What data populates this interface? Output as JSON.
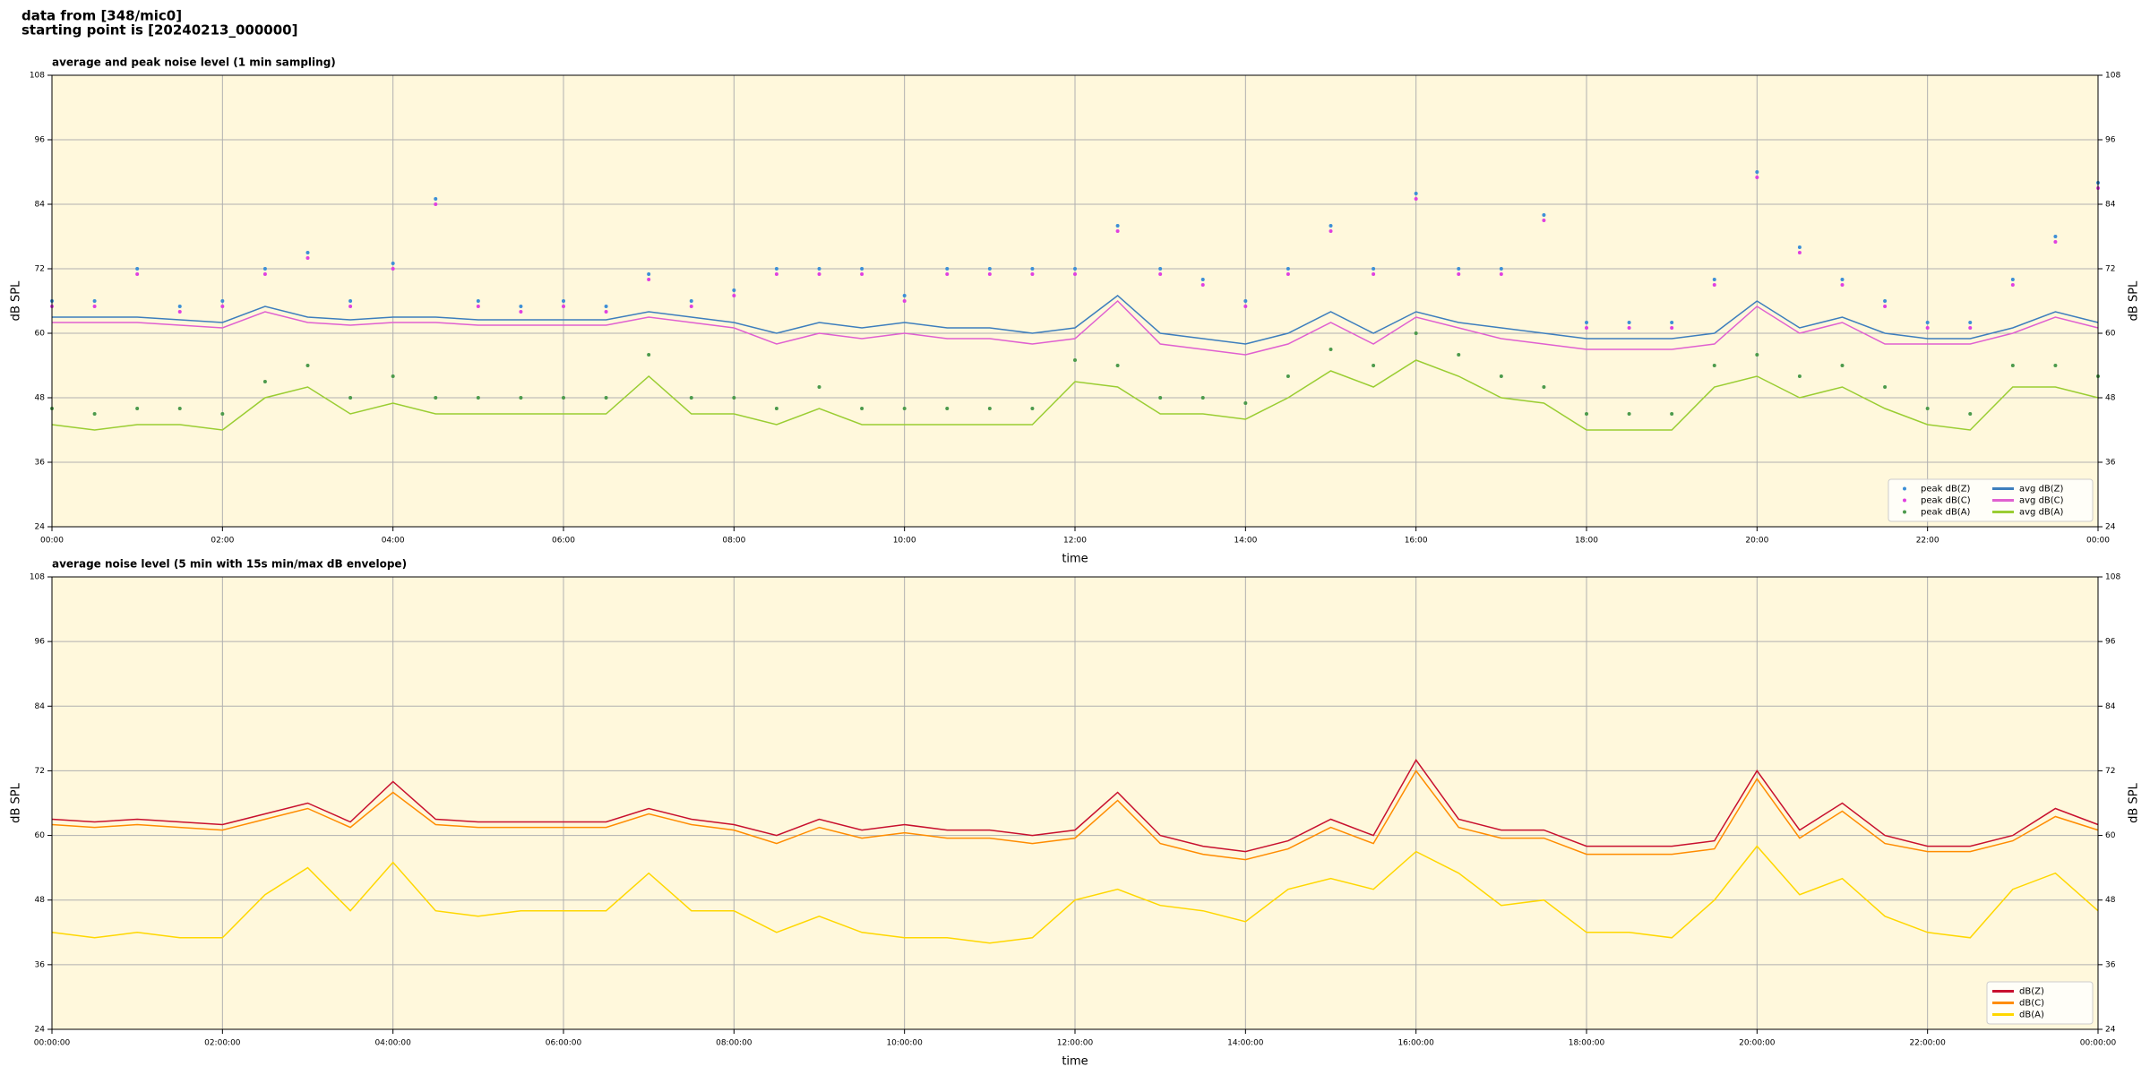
{
  "title": [
    "data from [348/mic0]",
    "starting point is [20240213_000000]"
  ],
  "chart_data": [
    {
      "type": "line",
      "title": "average and peak noise level (1 min sampling)",
      "xlabel": "time",
      "ylabel": "dB SPL",
      "y2label": "dB SPL",
      "x": [
        0,
        0.5,
        1,
        1.5,
        2,
        2.5,
        3,
        3.5,
        4,
        4.5,
        5,
        5.5,
        6,
        6.5,
        7,
        7.5,
        8,
        8.5,
        9,
        9.5,
        10,
        10.5,
        11,
        11.5,
        12,
        12.5,
        13,
        13.5,
        14,
        14.5,
        15,
        15.5,
        16,
        16.5,
        17,
        17.5,
        18,
        18.5,
        19,
        19.5,
        20,
        20.5,
        21,
        21.5,
        22,
        22.5,
        23,
        23.5,
        24
      ],
      "xlim": [
        0,
        24
      ],
      "xticks": [
        {
          "value": 0,
          "label": "00:00"
        },
        {
          "value": 2,
          "label": "02:00"
        },
        {
          "value": 4,
          "label": "04:00"
        },
        {
          "value": 6,
          "label": "06:00"
        },
        {
          "value": 8,
          "label": "08:00"
        },
        {
          "value": 10,
          "label": "10:00"
        },
        {
          "value": 12,
          "label": "12:00"
        },
        {
          "value": 14,
          "label": "14:00"
        },
        {
          "value": 16,
          "label": "16:00"
        },
        {
          "value": 18,
          "label": "18:00"
        },
        {
          "value": 20,
          "label": "20:00"
        },
        {
          "value": 22,
          "label": "22:00"
        },
        {
          "value": 24,
          "label": "00:00"
        }
      ],
      "ylim": [
        24,
        108
      ],
      "yticks": [
        24,
        36,
        48,
        60,
        72,
        84,
        96,
        108
      ],
      "y2lim": [
        24,
        108
      ],
      "y2ticks": [
        24,
        36,
        48,
        60,
        72,
        84,
        96,
        108
      ],
      "grid": true,
      "legend": "lower right",
      "legend_columns": 2,
      "series": [
        {
          "name": "peak dB(Z)",
          "kind": "scatter",
          "color": "#3d8fd6",
          "values": [
            66,
            66,
            72,
            65,
            66,
            72,
            75,
            66,
            73,
            85,
            66,
            65,
            66,
            65,
            71,
            66,
            68,
            72,
            72,
            72,
            67,
            72,
            72,
            72,
            72,
            80,
            72,
            70,
            66,
            72,
            80,
            72,
            86,
            72,
            72,
            82,
            62,
            62,
            62,
            70,
            90,
            76,
            70,
            66,
            62,
            62,
            70,
            78,
            88
          ]
        },
        {
          "name": "peak dB(C)",
          "kind": "scatter",
          "color": "#e040e0",
          "values": [
            65,
            65,
            71,
            64,
            65,
            71,
            74,
            65,
            72,
            84,
            65,
            64,
            65,
            64,
            70,
            65,
            67,
            71,
            71,
            71,
            66,
            71,
            71,
            71,
            71,
            79,
            71,
            69,
            65,
            71,
            79,
            71,
            85,
            71,
            71,
            81,
            61,
            61,
            61,
            69,
            89,
            75,
            69,
            65,
            61,
            61,
            69,
            77,
            87
          ]
        },
        {
          "name": "peak dB(A)",
          "kind": "scatter",
          "color": "#4c9a4c",
          "values": [
            46,
            45,
            46,
            46,
            45,
            51,
            54,
            48,
            52,
            48,
            48,
            48,
            48,
            48,
            56,
            48,
            48,
            46,
            50,
            46,
            46,
            46,
            46,
            46,
            55,
            54,
            48,
            48,
            47,
            52,
            57,
            54,
            60,
            56,
            52,
            50,
            45,
            45,
            45,
            54,
            56,
            52,
            54,
            50,
            46,
            45,
            54,
            54,
            52
          ]
        },
        {
          "name": "avg dB(Z)",
          "kind": "line",
          "color": "#3d7ebd",
          "values": [
            63,
            63,
            63,
            62.5,
            62,
            65,
            63,
            62.5,
            63,
            63,
            62.5,
            62.5,
            62.5,
            62.5,
            64,
            63,
            62,
            60,
            62,
            61,
            62,
            61,
            61,
            60,
            61,
            67,
            60,
            59,
            58,
            60,
            64,
            60,
            64,
            62,
            61,
            60,
            59,
            59,
            59,
            60,
            66,
            61,
            63,
            60,
            59,
            59,
            61,
            64,
            62
          ]
        },
        {
          "name": "avg dB(C)",
          "kind": "line",
          "color": "#e060d0",
          "values": [
            62,
            62,
            62,
            61.5,
            61,
            64,
            62,
            61.5,
            62,
            62,
            61.5,
            61.5,
            61.5,
            61.5,
            63,
            62,
            61,
            58,
            60,
            59,
            60,
            59,
            59,
            58,
            59,
            66,
            58,
            57,
            56,
            58,
            62,
            58,
            63,
            61,
            59,
            58,
            57,
            57,
            57,
            58,
            65,
            60,
            62,
            58,
            58,
            58,
            60,
            63,
            61
          ]
        },
        {
          "name": "avg dB(A)",
          "kind": "line",
          "color": "#9acd32",
          "values": [
            43,
            42,
            43,
            43,
            42,
            48,
            50,
            45,
            47,
            45,
            45,
            45,
            45,
            45,
            52,
            45,
            45,
            43,
            46,
            43,
            43,
            43,
            43,
            43,
            51,
            50,
            45,
            45,
            44,
            48,
            53,
            50,
            55,
            52,
            48,
            47,
            42,
            42,
            42,
            50,
            52,
            48,
            50,
            46,
            43,
            42,
            50,
            50,
            48
          ]
        }
      ]
    },
    {
      "type": "line",
      "title": "average noise level (5 min with 15s min/max dB envelope)",
      "xlabel": "time",
      "ylabel": "dB SPL",
      "y2label": "dB SPL",
      "x": [
        0,
        0.5,
        1,
        1.5,
        2,
        2.5,
        3,
        3.5,
        4,
        4.5,
        5,
        5.5,
        6,
        6.5,
        7,
        7.5,
        8,
        8.5,
        9,
        9.5,
        10,
        10.5,
        11,
        11.5,
        12,
        12.5,
        13,
        13.5,
        14,
        14.5,
        15,
        15.5,
        16,
        16.5,
        17,
        17.5,
        18,
        18.5,
        19,
        19.5,
        20,
        20.5,
        21,
        21.5,
        22,
        22.5,
        23,
        23.5,
        24
      ],
      "xlim": [
        0,
        24
      ],
      "xticks": [
        {
          "value": 0,
          "label": "00:00:00"
        },
        {
          "value": 2,
          "label": "02:00:00"
        },
        {
          "value": 4,
          "label": "04:00:00"
        },
        {
          "value": 6,
          "label": "06:00:00"
        },
        {
          "value": 8,
          "label": "08:00:00"
        },
        {
          "value": 10,
          "label": "10:00:00"
        },
        {
          "value": 12,
          "label": "12:00:00"
        },
        {
          "value": 14,
          "label": "14:00:00"
        },
        {
          "value": 16,
          "label": "16:00:00"
        },
        {
          "value": 18,
          "label": "18:00:00"
        },
        {
          "value": 20,
          "label": "20:00:00"
        },
        {
          "value": 22,
          "label": "22:00:00"
        },
        {
          "value": 24,
          "label": "00:00:00"
        }
      ],
      "ylim": [
        24,
        108
      ],
      "yticks": [
        24,
        36,
        48,
        60,
        72,
        84,
        96,
        108
      ],
      "y2lim": [
        24,
        108
      ],
      "y2ticks": [
        24,
        36,
        48,
        60,
        72,
        84,
        96,
        108
      ],
      "grid": true,
      "legend": "lower right",
      "legend_columns": 1,
      "series": [
        {
          "name": "dB(Z)",
          "kind": "line",
          "color": "#c8102e",
          "values": [
            63,
            62.5,
            63,
            62.5,
            62,
            64,
            66,
            62.5,
            70,
            63,
            62.5,
            62.5,
            62.5,
            62.5,
            65,
            63,
            62,
            60,
            63,
            61,
            62,
            61,
            61,
            60,
            61,
            68,
            60,
            58,
            57,
            59,
            63,
            60,
            74,
            63,
            61,
            61,
            58,
            58,
            58,
            59,
            72,
            61,
            66,
            60,
            58,
            58,
            60,
            65,
            62
          ]
        },
        {
          "name": "dB(C)",
          "kind": "line",
          "color": "#ff8c00",
          "values": [
            62,
            61.5,
            62,
            61.5,
            61,
            63,
            65,
            61.5,
            68,
            62,
            61.5,
            61.5,
            61.5,
            61.5,
            64,
            62,
            61,
            58.5,
            61.5,
            59.5,
            60.5,
            59.5,
            59.5,
            58.5,
            59.5,
            66.5,
            58.5,
            56.5,
            55.5,
            57.5,
            61.5,
            58.5,
            72,
            61.5,
            59.5,
            59.5,
            56.5,
            56.5,
            56.5,
            57.5,
            70.5,
            59.5,
            64.5,
            58.5,
            57,
            57,
            59,
            63.5,
            61
          ]
        },
        {
          "name": "dB(A)",
          "kind": "line",
          "color": "#ffd700",
          "values": [
            42,
            41,
            42,
            41,
            41,
            49,
            54,
            46,
            55,
            46,
            45,
            46,
            46,
            46,
            53,
            46,
            46,
            42,
            45,
            42,
            41,
            41,
            40,
            41,
            48,
            50,
            47,
            46,
            44,
            50,
            52,
            50,
            57,
            53,
            47,
            48,
            42,
            42,
            41,
            48,
            58,
            49,
            52,
            45,
            42,
            41,
            50,
            53,
            46
          ]
        }
      ]
    }
  ]
}
